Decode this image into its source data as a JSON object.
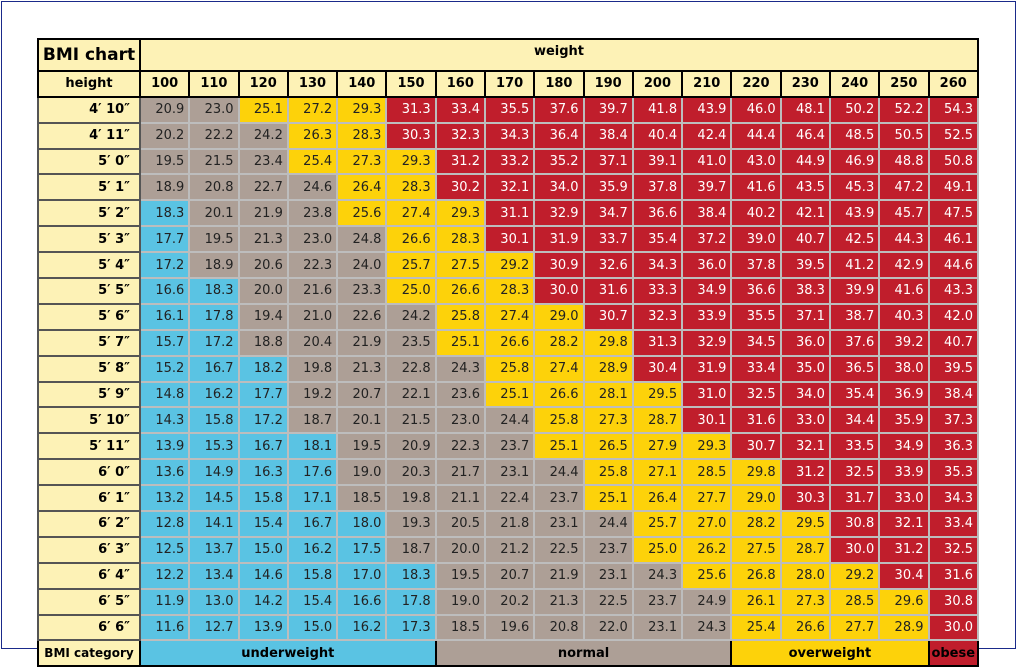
{
  "chart_data": {
    "type": "table",
    "title": "BMI chart",
    "column_group_label": "weight",
    "row_header_label": "height",
    "category_row_label": "BMI category",
    "weights": [
      "100",
      "110",
      "120",
      "130",
      "140",
      "150",
      "160",
      "170",
      "180",
      "190",
      "200",
      "210",
      "220",
      "230",
      "240",
      "250",
      "260"
    ],
    "heights": [
      "4′ 10″",
      "4′ 11″",
      "5′ 0″",
      "5′ 1″",
      "5′ 2″",
      "5′ 3″",
      "5′ 4″",
      "5′ 5″",
      "5′ 6″",
      "5′ 7″",
      "5′ 8″",
      "5′ 9″",
      "5′ 10″",
      "5′ 11″",
      "6′ 0″",
      "6′ 1″",
      "6′ 2″",
      "6′ 3″",
      "6′ 4″",
      "6′ 5″",
      "6′ 6″"
    ],
    "values": [
      [
        "20.9",
        "23.0",
        "25.1",
        "27.2",
        "29.3",
        "31.3",
        "33.4",
        "35.5",
        "37.6",
        "39.7",
        "41.8",
        "43.9",
        "46.0",
        "48.1",
        "50.2",
        "52.2",
        "54.3"
      ],
      [
        "20.2",
        "22.2",
        "24.2",
        "26.3",
        "28.3",
        "30.3",
        "32.3",
        "34.3",
        "36.4",
        "38.4",
        "40.4",
        "42.4",
        "44.4",
        "46.4",
        "48.5",
        "50.5",
        "52.5"
      ],
      [
        "19.5",
        "21.5",
        "23.4",
        "25.4",
        "27.3",
        "29.3",
        "31.2",
        "33.2",
        "35.2",
        "37.1",
        "39.1",
        "41.0",
        "43.0",
        "44.9",
        "46.9",
        "48.8",
        "50.8"
      ],
      [
        "18.9",
        "20.8",
        "22.7",
        "24.6",
        "26.4",
        "28.3",
        "30.2",
        "32.1",
        "34.0",
        "35.9",
        "37.8",
        "39.7",
        "41.6",
        "43.5",
        "45.3",
        "47.2",
        "49.1"
      ],
      [
        "18.3",
        "20.1",
        "21.9",
        "23.8",
        "25.6",
        "27.4",
        "29.3",
        "31.1",
        "32.9",
        "34.7",
        "36.6",
        "38.4",
        "40.2",
        "42.1",
        "43.9",
        "45.7",
        "47.5"
      ],
      [
        "17.7",
        "19.5",
        "21.3",
        "23.0",
        "24.8",
        "26.6",
        "28.3",
        "30.1",
        "31.9",
        "33.7",
        "35.4",
        "37.2",
        "39.0",
        "40.7",
        "42.5",
        "44.3",
        "46.1"
      ],
      [
        "17.2",
        "18.9",
        "20.6",
        "22.3",
        "24.0",
        "25.7",
        "27.5",
        "29.2",
        "30.9",
        "32.6",
        "34.3",
        "36.0",
        "37.8",
        "39.5",
        "41.2",
        "42.9",
        "44.6"
      ],
      [
        "16.6",
        "18.3",
        "20.0",
        "21.6",
        "23.3",
        "25.0",
        "26.6",
        "28.3",
        "30.0",
        "31.6",
        "33.3",
        "34.9",
        "36.6",
        "38.3",
        "39.9",
        "41.6",
        "43.3"
      ],
      [
        "16.1",
        "17.8",
        "19.4",
        "21.0",
        "22.6",
        "24.2",
        "25.8",
        "27.4",
        "29.0",
        "30.7",
        "32.3",
        "33.9",
        "35.5",
        "37.1",
        "38.7",
        "40.3",
        "42.0"
      ],
      [
        "15.7",
        "17.2",
        "18.8",
        "20.4",
        "21.9",
        "23.5",
        "25.1",
        "26.6",
        "28.2",
        "29.8",
        "31.3",
        "32.9",
        "34.5",
        "36.0",
        "37.6",
        "39.2",
        "40.7"
      ],
      [
        "15.2",
        "16.7",
        "18.2",
        "19.8",
        "21.3",
        "22.8",
        "24.3",
        "25.8",
        "27.4",
        "28.9",
        "30.4",
        "31.9",
        "33.4",
        "35.0",
        "36.5",
        "38.0",
        "39.5"
      ],
      [
        "14.8",
        "16.2",
        "17.7",
        "19.2",
        "20.7",
        "22.1",
        "23.6",
        "25.1",
        "26.6",
        "28.1",
        "29.5",
        "31.0",
        "32.5",
        "34.0",
        "35.4",
        "36.9",
        "38.4"
      ],
      [
        "14.3",
        "15.8",
        "17.2",
        "18.7",
        "20.1",
        "21.5",
        "23.0",
        "24.4",
        "25.8",
        "27.3",
        "28.7",
        "30.1",
        "31.6",
        "33.0",
        "34.4",
        "35.9",
        "37.3"
      ],
      [
        "13.9",
        "15.3",
        "16.7",
        "18.1",
        "19.5",
        "20.9",
        "22.3",
        "23.7",
        "25.1",
        "26.5",
        "27.9",
        "29.3",
        "30.7",
        "32.1",
        "33.5",
        "34.9",
        "36.3"
      ],
      [
        "13.6",
        "14.9",
        "16.3",
        "17.6",
        "19.0",
        "20.3",
        "21.7",
        "23.1",
        "24.4",
        "25.8",
        "27.1",
        "28.5",
        "29.8",
        "31.2",
        "32.5",
        "33.9",
        "35.3"
      ],
      [
        "13.2",
        "14.5",
        "15.8",
        "17.1",
        "18.5",
        "19.8",
        "21.1",
        "22.4",
        "23.7",
        "25.1",
        "26.4",
        "27.7",
        "29.0",
        "30.3",
        "31.7",
        "33.0",
        "34.3"
      ],
      [
        "12.8",
        "14.1",
        "15.4",
        "16.7",
        "18.0",
        "19.3",
        "20.5",
        "21.8",
        "23.1",
        "24.4",
        "25.7",
        "27.0",
        "28.2",
        "29.5",
        "30.8",
        "32.1",
        "33.4"
      ],
      [
        "12.5",
        "13.7",
        "15.0",
        "16.2",
        "17.5",
        "18.7",
        "20.0",
        "21.2",
        "22.5",
        "23.7",
        "25.0",
        "26.2",
        "27.5",
        "28.7",
        "30.0",
        "31.2",
        "32.5"
      ],
      [
        "12.2",
        "13.4",
        "14.6",
        "15.8",
        "17.0",
        "18.3",
        "19.5",
        "20.7",
        "21.9",
        "23.1",
        "24.3",
        "25.6",
        "26.8",
        "28.0",
        "29.2",
        "30.4",
        "31.6"
      ],
      [
        "11.9",
        "13.0",
        "14.2",
        "15.4",
        "16.6",
        "17.8",
        "19.0",
        "20.2",
        "21.3",
        "22.5",
        "23.7",
        "24.9",
        "26.1",
        "27.3",
        "28.5",
        "29.6",
        "30.8"
      ],
      [
        "11.6",
        "12.7",
        "13.9",
        "15.0",
        "16.2",
        "17.3",
        "18.5",
        "19.6",
        "20.8",
        "22.0",
        "23.1",
        "24.3",
        "25.4",
        "26.6",
        "27.7",
        "28.9",
        "30.0"
      ]
    ],
    "thresholds": {
      "normal": 18.5,
      "overweight": 25.0,
      "obese": 30.0
    },
    "categories": [
      {
        "label": "underweight",
        "span": 6,
        "color": "#5ac3e3"
      },
      {
        "label": "normal",
        "span": 6,
        "color": "#ad9f96"
      },
      {
        "label": "overweight",
        "span": 4,
        "color": "#fdd20a"
      },
      {
        "label": "obese",
        "span": 1,
        "color": "#c01e2c"
      }
    ]
  }
}
